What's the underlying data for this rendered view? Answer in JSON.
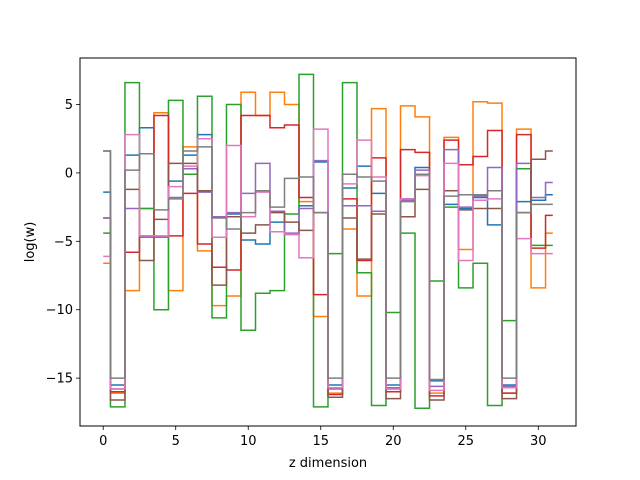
{
  "chart_data": {
    "type": "line",
    "drawstyle": "steps-mid",
    "xlabel": "z dimension",
    "ylabel": "log(w)",
    "xlim": [
      -1.6,
      32.6
    ],
    "ylim": [
      -18.5,
      8.4
    ],
    "x_ticks": [
      0,
      5,
      10,
      15,
      20,
      25,
      30
    ],
    "y_ticks": [
      -15,
      -10,
      -5,
      0,
      5
    ],
    "x_tick_labels": [
      "0",
      "5",
      "10",
      "15",
      "20",
      "25",
      "30"
    ],
    "y_tick_labels": [
      "−15",
      "−10",
      "−5",
      "0",
      "5"
    ],
    "grid": false,
    "x": [
      0,
      1,
      2,
      3,
      4,
      5,
      6,
      7,
      8,
      9,
      10,
      11,
      12,
      13,
      14,
      15,
      16,
      17,
      18,
      19,
      20,
      21,
      22,
      23,
      24,
      25,
      26,
      27,
      28,
      29,
      30,
      31
    ],
    "series": [
      {
        "color": "#1f77b4",
        "values": [
          -1.4,
          -15.5,
          1.3,
          3.3,
          -4.7,
          -0.6,
          1.3,
          2.8,
          -3.2,
          -3.0,
          -4.9,
          -5.2,
          -3.6,
          -4.5,
          -2.4,
          0.8,
          -15.5,
          -1.1,
          0.5,
          -1.5,
          -15.5,
          -1.9,
          0.4,
          -15.2,
          -2.3,
          -2.6,
          -1.8,
          -3.8,
          -15.5,
          -2.1,
          -2.0,
          -1.6
        ]
      },
      {
        "color": "#ff7f0e",
        "values": [
          -6.6,
          -16.1,
          -8.6,
          -2.6,
          4.4,
          -8.6,
          1.9,
          -5.7,
          -9.7,
          -9.0,
          5.9,
          4.2,
          5.9,
          5.0,
          -2.1,
          -10.5,
          -16.1,
          -4.1,
          -9.0,
          4.7,
          -15.8,
          4.9,
          4.1,
          -16.1,
          2.6,
          -5.6,
          5.2,
          5.1,
          -16.1,
          3.2,
          -8.4,
          -4.4
        ]
      },
      {
        "color": "#2ca02c",
        "values": [
          -4.4,
          -17.1,
          6.6,
          -2.6,
          -10.0,
          5.3,
          -0.1,
          5.6,
          -10.6,
          5.0,
          -11.5,
          -8.8,
          -8.6,
          -3.0,
          7.2,
          -17.1,
          -5.9,
          6.6,
          -7.3,
          -17.0,
          -10.2,
          -4.4,
          -17.2,
          -7.9,
          -2.5,
          -8.4,
          -6.6,
          -17.0,
          -10.8,
          0.3,
          -5.3,
          -5.3
        ]
      },
      {
        "color": "#d62728",
        "values": [
          -3.3,
          -16.0,
          -5.8,
          -4.6,
          4.2,
          -4.6,
          -1.5,
          -5.2,
          -6.9,
          -7.1,
          4.2,
          4.2,
          3.3,
          3.5,
          -1.8,
          -8.9,
          -16.2,
          -1.9,
          -6.4,
          1.1,
          -16.0,
          1.7,
          1.5,
          -16.3,
          2.4,
          0.6,
          1.2,
          3.1,
          -16.1,
          2.8,
          -5.5,
          -3.1
        ]
      },
      {
        "color": "#9467bd",
        "values": [
          -3.3,
          -15.8,
          -2.6,
          -4.7,
          -4.7,
          -1.8,
          0.3,
          -1.4,
          -3.2,
          -2.9,
          -1.5,
          0.7,
          -2.8,
          -4.4,
          -2.6,
          0.9,
          -15.8,
          -2.4,
          -2.4,
          -2.8,
          -15.7,
          -2.0,
          0.2,
          -15.6,
          1.7,
          -2.5,
          -1.7,
          0.4,
          -15.6,
          0.7,
          -1.8,
          -0.7
        ]
      },
      {
        "color": "#8c564b",
        "values": [
          1.6,
          -16.6,
          -1.2,
          -6.4,
          -3.4,
          0.7,
          0.7,
          -1.3,
          -8.2,
          -3.2,
          -4.4,
          -3.8,
          -2.9,
          -3.6,
          -4.2,
          -2.9,
          -16.4,
          -3.3,
          -6.3,
          -3.0,
          -16.5,
          -3.2,
          -1.2,
          -16.6,
          -1.3,
          -2.7,
          -2.6,
          -2.6,
          -16.5,
          -2.9,
          1.0,
          1.6
        ]
      },
      {
        "color": "#e377c2",
        "values": [
          -6.1,
          -15.8,
          2.8,
          -4.6,
          -4.6,
          -1.0,
          0.5,
          2.5,
          -4.7,
          2.0,
          -3.2,
          -1.4,
          -4.3,
          -4.5,
          -6.2,
          3.2,
          -15.7,
          -0.8,
          2.4,
          -0.3,
          -15.8,
          -1.9,
          -0.2,
          -15.9,
          0.7,
          -6.4,
          -2.0,
          -1.9,
          -15.7,
          -4.8,
          -5.9,
          -5.9
        ]
      },
      {
        "color": "#7f7f7f",
        "values": [
          1.6,
          -15.0,
          0.2,
          1.4,
          -2.7,
          -1.9,
          1.6,
          1.9,
          -3.3,
          -4.1,
          -2.9,
          -1.3,
          -2.5,
          -0.4,
          -0.3,
          -2.9,
          -15.0,
          -0.1,
          -0.3,
          -0.6,
          -15.0,
          -2.1,
          -0.1,
          -15.1,
          -1.7,
          -1.6,
          -1.6,
          -1.3,
          -15.0,
          -2.9,
          -2.3,
          -2.3
        ]
      }
    ]
  }
}
